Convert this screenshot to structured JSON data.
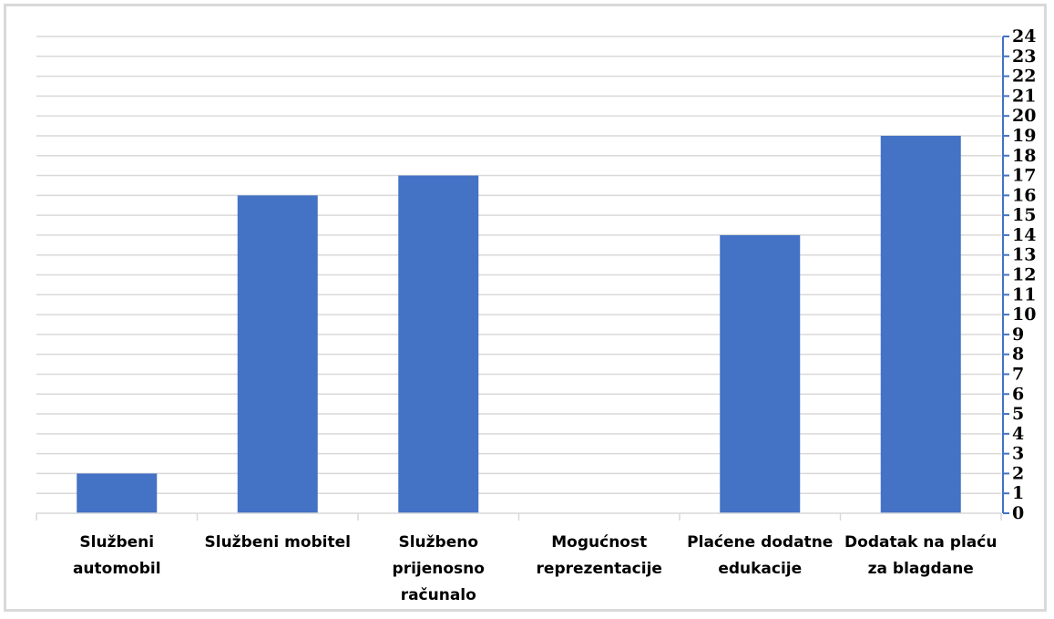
{
  "chart_data": {
    "type": "bar",
    "categories": [
      [
        "Službeni",
        "automobil"
      ],
      [
        "Službeni mobitel"
      ],
      [
        "Službeno",
        "prijenosno",
        "računalo"
      ],
      [
        "Mogućnost",
        "reprezentacije"
      ],
      [
        "Plaćene dodatne",
        "edukacije"
      ],
      [
        "Dodatak na plaću",
        "za blagdane"
      ]
    ],
    "values": [
      2,
      16,
      17,
      0,
      14,
      19
    ],
    "title": "",
    "xlabel": "",
    "ylabel": "",
    "ylim": [
      0,
      24
    ],
    "y_ticks": [
      "0",
      "1",
      "2",
      "3",
      "4",
      "5",
      "6",
      "7",
      "8",
      "9",
      "10",
      "11",
      "12",
      "13",
      "14",
      "15",
      "16",
      "17",
      "18",
      "19",
      "20",
      "21",
      "22",
      "23",
      "24"
    ],
    "y_axis_side": "right",
    "grid": true,
    "legend": "none",
    "colors": {
      "bar": "#4472c4",
      "grid": "#d9d9d9",
      "axis": "#4472c4",
      "frame": "#d9d9d9"
    }
  }
}
